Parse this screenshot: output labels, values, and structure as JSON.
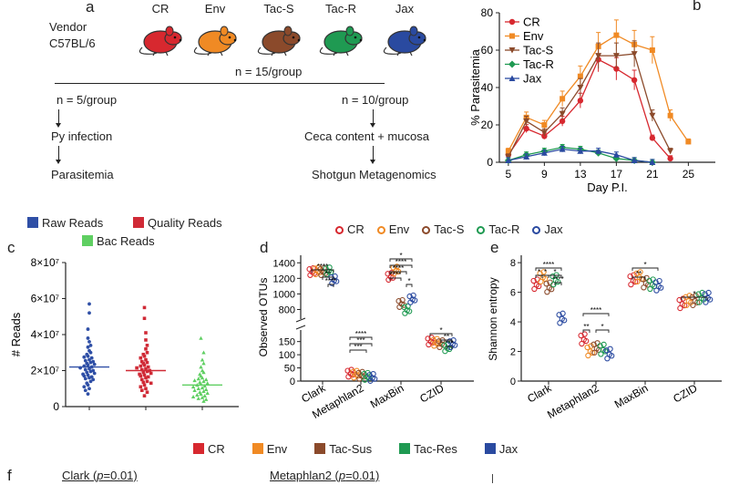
{
  "panel_labels": {
    "a": "a",
    "b": "b",
    "c": "c",
    "d": "d",
    "e": "e",
    "f": "f"
  },
  "colors": {
    "CR": "#d7282f",
    "Env": "#f08a24",
    "TacS": "#8b4a2b",
    "TacR": "#1f9a52",
    "Jax": "#2a4aa0",
    "Raw": "#2f4fa6",
    "Quality": "#d02a36",
    "Bac": "#5fcf62"
  },
  "panel_a": {
    "vendor": "Vendor",
    "strain": "C57BL/6",
    "groups": [
      "CR",
      "Env",
      "Tac-S",
      "Tac-R",
      "Jax"
    ],
    "n_total": "n = 15/group",
    "left_n": "n = 5/group",
    "right_n": "n = 10/group",
    "left_step1": "Py infection",
    "left_step2": "Parasitemia",
    "right_step1": "Ceca content + mucosa",
    "right_step2": "Shotgun Metagenomics"
  },
  "legend_bottom": [
    "CR",
    "Env",
    "Tac-Sus",
    "Tac-Res",
    "Jax"
  ],
  "panel_f": {
    "title1": "Clark (",
    "p1": "p",
    "val1": "=0.01)",
    "title2": "Metaphlan2 (",
    "p2": "p",
    "val2": "=0.01)"
  },
  "chart_data": [
    {
      "panel": "b",
      "type": "line",
      "ylabel": "% Parasitemia",
      "xlabel": "Day P.I.",
      "ylim": [
        0,
        80
      ],
      "yticks": [
        0,
        20,
        40,
        60,
        80
      ],
      "xlim": [
        4,
        28
      ],
      "xticks": [
        5,
        9,
        13,
        17,
        21,
        25
      ],
      "x": [
        5,
        7,
        9,
        11,
        13,
        15,
        17,
        19,
        21,
        23,
        25
      ],
      "series": [
        {
          "name": "CR",
          "marker": "circle",
          "values": [
            4,
            18,
            14,
            22,
            33,
            55,
            50,
            44,
            13,
            2,
            null
          ]
        },
        {
          "name": "Env",
          "marker": "square",
          "values": [
            6,
            24,
            20,
            34,
            46,
            62,
            68,
            63,
            60,
            25,
            11
          ]
        },
        {
          "name": "Tac-S",
          "marker": "triangle-down",
          "values": [
            3,
            22,
            16,
            26,
            40,
            57,
            57,
            58,
            25,
            6,
            null
          ]
        },
        {
          "name": "Tac-R",
          "marker": "diamond",
          "values": [
            1,
            4,
            6,
            8,
            7,
            5,
            2,
            1,
            0,
            null,
            null
          ]
        },
        {
          "name": "Jax",
          "marker": "triangle-up",
          "values": [
            1,
            3,
            5,
            7,
            6,
            6,
            4,
            1,
            0,
            null,
            null
          ]
        }
      ],
      "legend": [
        "CR",
        "Env",
        "Tac-S",
        "Tac-R",
        "Jax"
      ]
    },
    {
      "panel": "c",
      "type": "scatter",
      "ylabel": "# Reads",
      "yticks": [
        "0",
        "2×10⁷",
        "4×10⁷",
        "6×10⁷",
        "8×10⁷"
      ],
      "ytick_values": [
        0,
        20000000.0,
        40000000.0,
        60000000.0,
        80000000.0
      ],
      "ylim": [
        0,
        80000000.0
      ],
      "legend": [
        "Raw Reads",
        "Quality Reads",
        "Bac Reads"
      ],
      "groups": [
        {
          "name": "Raw Reads",
          "median": 22000000,
          "values": [
            57000000,
            52000000,
            43000000,
            38000000,
            36000000,
            34000000,
            33000000,
            31000000,
            30000000,
            29000000,
            28000000,
            27500000,
            27000000,
            26000000,
            25500000,
            25000000,
            24500000,
            24000000,
            23500000,
            23000000,
            22500000,
            22000000,
            21500000,
            21000000,
            20500000,
            20000000,
            19500000,
            19000000,
            18500000,
            18000000,
            17500000,
            17000000,
            16500000,
            16000000,
            15500000,
            15000000,
            14000000,
            13000000,
            12000000,
            11000000,
            10000000,
            9000000,
            7000000
          ]
        },
        {
          "name": "Quality Reads",
          "median": 20000000,
          "values": [
            55000000,
            49000000,
            41000000,
            37000000,
            34000000,
            32000000,
            30000000,
            29000000,
            28000000,
            27000000,
            26000000,
            25000000,
            24500000,
            24000000,
            23000000,
            22500000,
            22000000,
            21500000,
            21000000,
            20500000,
            20000000,
            19500000,
            19000000,
            18500000,
            18000000,
            17500000,
            17000000,
            16500000,
            16000000,
            15000000,
            14000000,
            13500000,
            13000000,
            12000000,
            11000000,
            10000000,
            9000000,
            8000000,
            6000000
          ]
        },
        {
          "name": "Bac Reads",
          "median": 12000000,
          "values": [
            38000000,
            30000000,
            26000000,
            24000000,
            22000000,
            20000000,
            19000000,
            18000000,
            17000000,
            16000000,
            15500000,
            15000000,
            14500000,
            14000000,
            13500000,
            13000000,
            12500000,
            12000000,
            11500000,
            11000000,
            10500000,
            10000000,
            9500000,
            9000000,
            8500000,
            8000000,
            7500000,
            7000000,
            6500000,
            6000000,
            5500000,
            5000000,
            4500000,
            4000000,
            3000000
          ]
        }
      ]
    },
    {
      "panel": "d",
      "type": "scatter",
      "ylabel": "Observed OTUs",
      "categories": [
        "Clark",
        "Metaphlan2",
        "MaxBin",
        "CZID"
      ],
      "series_names": [
        "CR",
        "Env",
        "Tac-S",
        "Tac-R",
        "Jax"
      ],
      "yticks_upper": [
        800,
        1000,
        1200,
        1400
      ],
      "yticks_lower": [
        0,
        50,
        100,
        150
      ],
      "values": [
        [
          1280,
          1290,
          1280,
          1290,
          1175
        ],
        [
          28,
          24,
          20,
          16,
          12
        ],
        [
          1220,
          1300,
          870,
          790,
          930
        ],
        [
          150,
          145,
          140,
          125,
          140
        ]
      ],
      "significance": [
        "****",
        "**",
        "****",
        "*",
        "****",
        "****",
        "****",
        "*",
        "****",
        "***",
        "***",
        "*",
        "**",
        "***"
      ]
    },
    {
      "panel": "e",
      "type": "scatter",
      "ylabel": "Shannon entropy",
      "categories": [
        "Clark",
        "Metaphlan2",
        "MaxBin",
        "CZID"
      ],
      "series_names": [
        "CR",
        "Env",
        "Tac-S",
        "Tac-R",
        "Jax"
      ],
      "yticks": [
        0,
        2,
        4,
        6,
        8
      ],
      "ylim": [
        0,
        8.5
      ],
      "values": [
        [
          6.5,
          7.0,
          6.3,
          6.8,
          4.2
        ],
        [
          2.8,
          2.0,
          2.2,
          2.1,
          1.8
        ],
        [
          6.8,
          7.0,
          6.6,
          6.5,
          6.4
        ],
        [
          5.2,
          5.4,
          5.4,
          5.6,
          5.6
        ]
      ],
      "significance": [
        "****",
        "*",
        "*",
        "*",
        "****",
        "****",
        "**",
        "*",
        "*",
        "**",
        "*"
      ]
    }
  ]
}
